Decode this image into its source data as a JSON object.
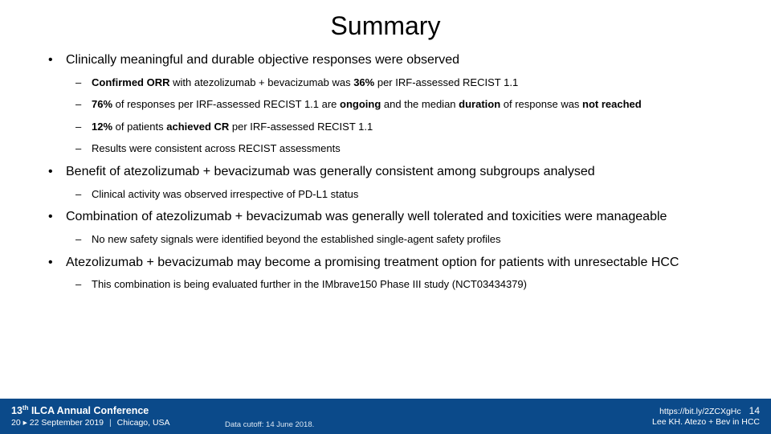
{
  "title": "Summary",
  "bullets": [
    {
      "text": "Clinically meaningful and durable objective responses were observed",
      "subs": [
        {
          "html": "<span class=\"b\">Confirmed ORR</span> with atezolizumab + bevacizumab was <span class=\"b\">36%</span> per IRF-assessed RECIST 1.1"
        },
        {
          "html": "<span class=\"b\">76%</span> of responses per IRF-assessed RECIST 1.1 are <span class=\"b\">ongoing</span> and the median <span class=\"b\">duration</span> of response was <span class=\"b\">not reached</span>"
        },
        {
          "html": "<span class=\"b\">12%</span> of patients <span class=\"b\">achieved CR</span> per IRF-assessed RECIST 1.1"
        },
        {
          "html": "Results were consistent across RECIST assessments"
        }
      ]
    },
    {
      "text": "Benefit of atezolizumab + bevacizumab was generally consistent among subgroups analysed",
      "subs": [
        {
          "html": "Clinical activity was observed irrespective of PD-L1 status"
        }
      ]
    },
    {
      "text": "Combination of atezolizumab + bevacizumab was generally well tolerated and toxicities were manageable",
      "subs": [
        {
          "html": "No new safety signals were identified beyond the established single-agent safety profiles"
        }
      ]
    },
    {
      "text": "Atezolizumab + bevacizumab may become a promising treatment option for patients with unresectable HCC",
      "subs": [
        {
          "html": "This combination is being evaluated further in the IMbrave150 Phase III study (NCT03434379)"
        }
      ]
    }
  ],
  "footer": {
    "conference_ordinal": "13",
    "conference_ordinal_suffix": "th",
    "conference_name": "ILCA Annual Conference",
    "date_range": "20 ▸ 22 September 2019",
    "location": "Chicago, USA",
    "data_cutoff": "Data cutoff: 14 June 2018.",
    "link": "https://bit.ly/2ZCXgHc",
    "page_number": "14",
    "citation": "Lee KH. Atezo + Bev in HCC"
  },
  "colors": {
    "footer_bg": "#0b4a8a",
    "text": "#000000",
    "footer_text": "#ffffff"
  }
}
